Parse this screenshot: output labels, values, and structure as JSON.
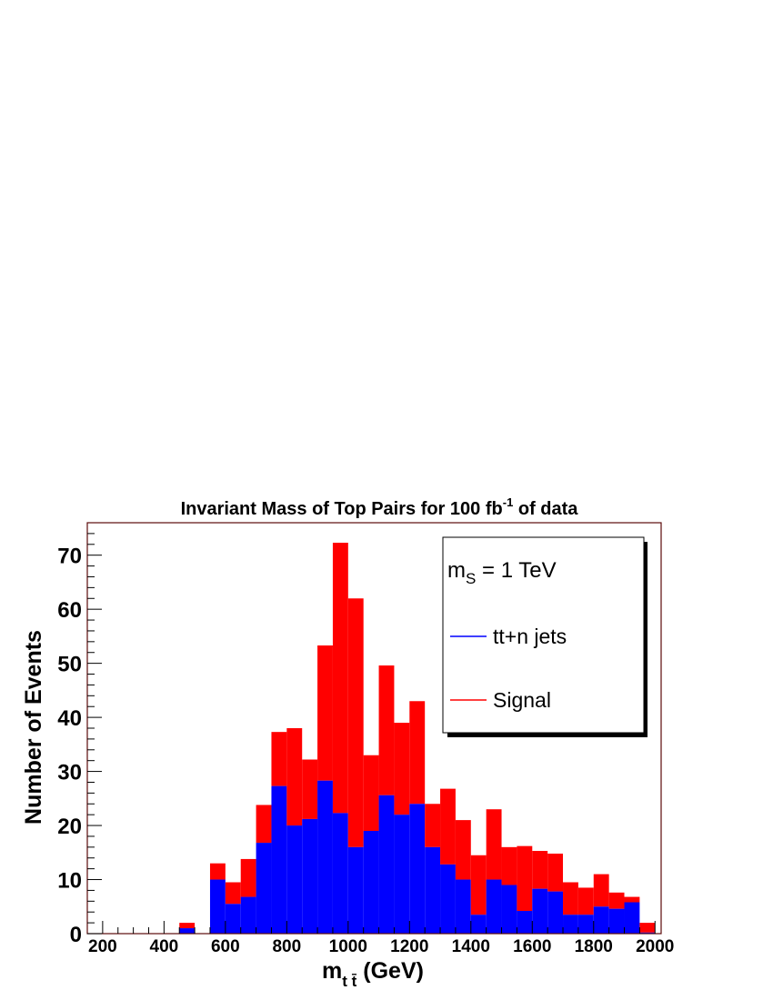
{
  "chart_data": {
    "type": "bar",
    "stacked": true,
    "title": "Invariant Mass of Top Pairs for 100 fb",
    "title_superscript": "-1",
    "title_suffix": " of data",
    "xlabel": "m",
    "xlabel_subscript": "t t̄",
    "xlabel_unit": " (GeV)",
    "ylabel": "Number of Events",
    "xlim": [
      200,
      2000
    ],
    "ylim": [
      0,
      76
    ],
    "x_ticks": [
      200,
      400,
      600,
      800,
      1000,
      1200,
      1400,
      1600,
      1800,
      2000
    ],
    "y_ticks": [
      0,
      10,
      20,
      30,
      40,
      50,
      60,
      70
    ],
    "bin_width": 50,
    "bin_low_edges": [
      200,
      250,
      300,
      350,
      400,
      450,
      500,
      550,
      600,
      650,
      700,
      750,
      800,
      850,
      900,
      950,
      1000,
      1050,
      1100,
      1150,
      1200,
      1250,
      1300,
      1350,
      1400,
      1450,
      1500,
      1550,
      1600,
      1650,
      1700,
      1750,
      1800,
      1850,
      1900,
      1950
    ],
    "series": [
      {
        "name": "tt+n jets",
        "color": "#0000ff",
        "values": [
          0,
          0,
          0,
          0,
          0,
          1,
          0,
          10,
          5.5,
          6.8,
          16.8,
          27.3,
          20,
          21.2,
          28.3,
          22.3,
          16,
          19,
          25.6,
          22,
          24,
          16,
          12.8,
          10,
          3.5,
          10,
          9,
          4.2,
          8.3,
          7.8,
          3.5,
          3.5,
          5,
          4.6,
          5.8,
          0.2
        ]
      },
      {
        "name": "Signal",
        "color": "#ff0000",
        "values": [
          0,
          0,
          0,
          0,
          0,
          1,
          0,
          3,
          4,
          7,
          7,
          10,
          18,
          11,
          25,
          50,
          46,
          14,
          24,
          17,
          19,
          8,
          14,
          11,
          11,
          13,
          7,
          12,
          7,
          7,
          6,
          5,
          6,
          3,
          1,
          1.8
        ]
      }
    ],
    "legend": {
      "placement": "top-right",
      "header_m": "m",
      "header_sub": "S",
      "header_rest": " = 1 TeV",
      "entries": [
        "tt+n jets",
        "Signal"
      ]
    },
    "grid": false
  }
}
